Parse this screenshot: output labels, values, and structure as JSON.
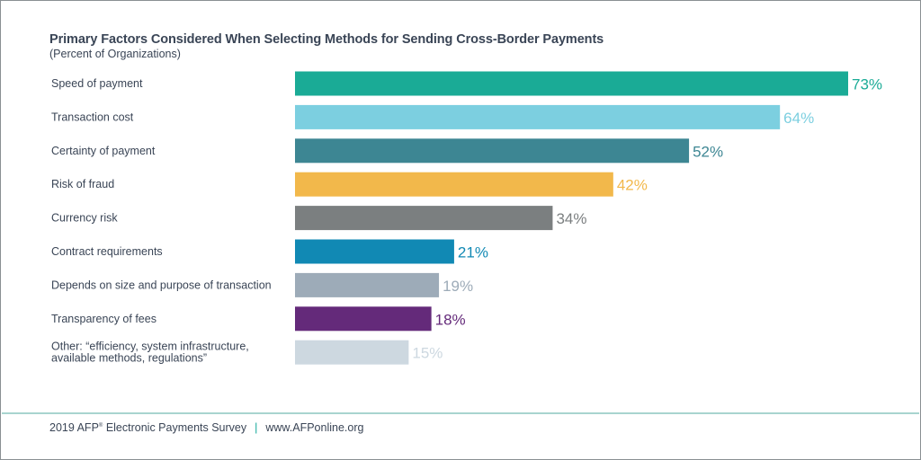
{
  "header": {
    "title": "Primary Factors Considered When Selecting Methods for Sending Cross-Border Payments",
    "subtitle": "(Percent of Organizations)"
  },
  "chart_data": {
    "type": "bar",
    "orientation": "horizontal",
    "title": "Primary Factors Considered When Selecting Methods for Sending Cross-Border Payments",
    "subtitle": "(Percent of Organizations)",
    "xlim": [
      0,
      73
    ],
    "grid": false,
    "legend": "none",
    "categories": [
      [
        "Speed of payment"
      ],
      [
        "Transaction cost"
      ],
      [
        "Certainty of payment"
      ],
      [
        "Risk of fraud"
      ],
      [
        "Currency risk"
      ],
      [
        "Contract requirements"
      ],
      [
        "Depends on size and purpose of transaction"
      ],
      [
        "Transparency of fees"
      ],
      [
        "Other: “efficiency, system infrastructure,",
        "available methods, regulations”"
      ]
    ],
    "values": [
      73,
      64,
      52,
      42,
      34,
      21,
      19,
      18,
      15
    ],
    "value_labels": [
      "73%",
      "64%",
      "52%",
      "42%",
      "34%",
      "21%",
      "19%",
      "18%",
      "15%"
    ],
    "colors": [
      "#1aab96",
      "#7ccfe0",
      "#3d8693",
      "#f2b84b",
      "#7b7f80",
      "#1189b4",
      "#9dabb8",
      "#642a7a",
      "#cdd8e0"
    ]
  },
  "footer": {
    "survey_year": "2019 AFP",
    "registered_mark": "®",
    "survey_name": "Electronic Payments Survey",
    "separator": "|",
    "website": "www.AFPonline.org"
  }
}
